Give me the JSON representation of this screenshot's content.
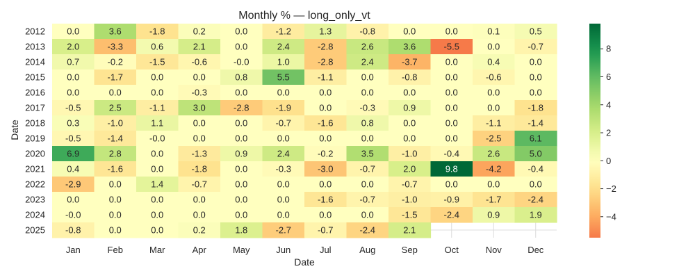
{
  "chart_data": {
    "type": "heatmap",
    "title": "Monthly % — long_only_vt",
    "xlabel": "Date",
    "ylabel": "Date",
    "x_categories": [
      "Jan",
      "Feb",
      "Mar",
      "Apr",
      "May",
      "Jun",
      "Jul",
      "Aug",
      "Sep",
      "Oct",
      "Nov",
      "Dec"
    ],
    "y_categories": [
      "2012",
      "2013",
      "2014",
      "2015",
      "2016",
      "2017",
      "2018",
      "2019",
      "2020",
      "2021",
      "2022",
      "2023",
      "2024",
      "2025"
    ],
    "values": [
      [
        0.0,
        3.6,
        -1.8,
        0.2,
        0.0,
        -1.2,
        1.3,
        -0.8,
        0.0,
        0.0,
        0.1,
        0.5
      ],
      [
        2.0,
        -3.3,
        0.6,
        2.1,
        0.0,
        2.4,
        -2.8,
        2.6,
        3.6,
        -5.5,
        0.0,
        -0.7
      ],
      [
        0.7,
        -0.2,
        -1.5,
        -0.6,
        -0.0,
        1.0,
        -2.8,
        2.4,
        -3.7,
        0.0,
        0.4,
        0.0
      ],
      [
        0.0,
        -1.7,
        0.0,
        0.0,
        0.8,
        5.5,
        -1.1,
        0.0,
        -0.8,
        0.0,
        -0.6,
        0.0
      ],
      [
        0.0,
        0.0,
        0.0,
        -0.3,
        0.0,
        0.0,
        0.0,
        0.0,
        0.0,
        0.0,
        0.0,
        0.0
      ],
      [
        -0.5,
        2.5,
        -1.1,
        3.0,
        -2.8,
        -1.9,
        0.0,
        -0.3,
        0.9,
        0.0,
        0.0,
        -1.8
      ],
      [
        0.3,
        -1.0,
        1.1,
        0.0,
        0.0,
        -0.7,
        -1.6,
        0.8,
        0.0,
        0.0,
        -1.1,
        -1.4
      ],
      [
        -0.5,
        -1.4,
        -0.0,
        0.0,
        0.0,
        0.0,
        0.0,
        0.0,
        0.0,
        0.0,
        -2.5,
        6.1
      ],
      [
        6.9,
        2.8,
        0.0,
        -1.3,
        0.9,
        2.4,
        -0.2,
        3.5,
        -1.0,
        -0.4,
        2.6,
        5.0
      ],
      [
        0.4,
        -1.6,
        0.0,
        -1.8,
        0.0,
        -0.3,
        -3.0,
        -0.7,
        2.0,
        9.8,
        -4.2,
        -0.4
      ],
      [
        -2.9,
        0.0,
        1.4,
        -0.7,
        0.0,
        0.0,
        0.0,
        0.0,
        -0.7,
        0.0,
        0.0,
        0.0
      ],
      [
        0.0,
        0.0,
        0.0,
        0.0,
        0.0,
        0.0,
        -1.6,
        -0.7,
        -1.0,
        -0.9,
        -1.7,
        -2.4
      ],
      [
        -0.0,
        0.0,
        0.0,
        0.0,
        0.0,
        0.0,
        0.0,
        0.0,
        -1.5,
        -2.4,
        0.9,
        1.9
      ],
      [
        -0.8,
        0.0,
        0.0,
        0.2,
        1.8,
        -2.7,
        -0.7,
        -2.4,
        2.1,
        null,
        null,
        null
      ]
    ],
    "colormap": "RdYlGn",
    "center": 0,
    "vmin": -5.5,
    "vmax": 9.8,
    "colorbar_ticks": [
      8,
      6,
      4,
      2,
      0,
      -2,
      -4
    ],
    "colorbar_tick_labels": [
      "8",
      "6",
      "4",
      "2",
      "0",
      "−2",
      "−4"
    ],
    "grid": true,
    "legend": "colorbar-right"
  }
}
